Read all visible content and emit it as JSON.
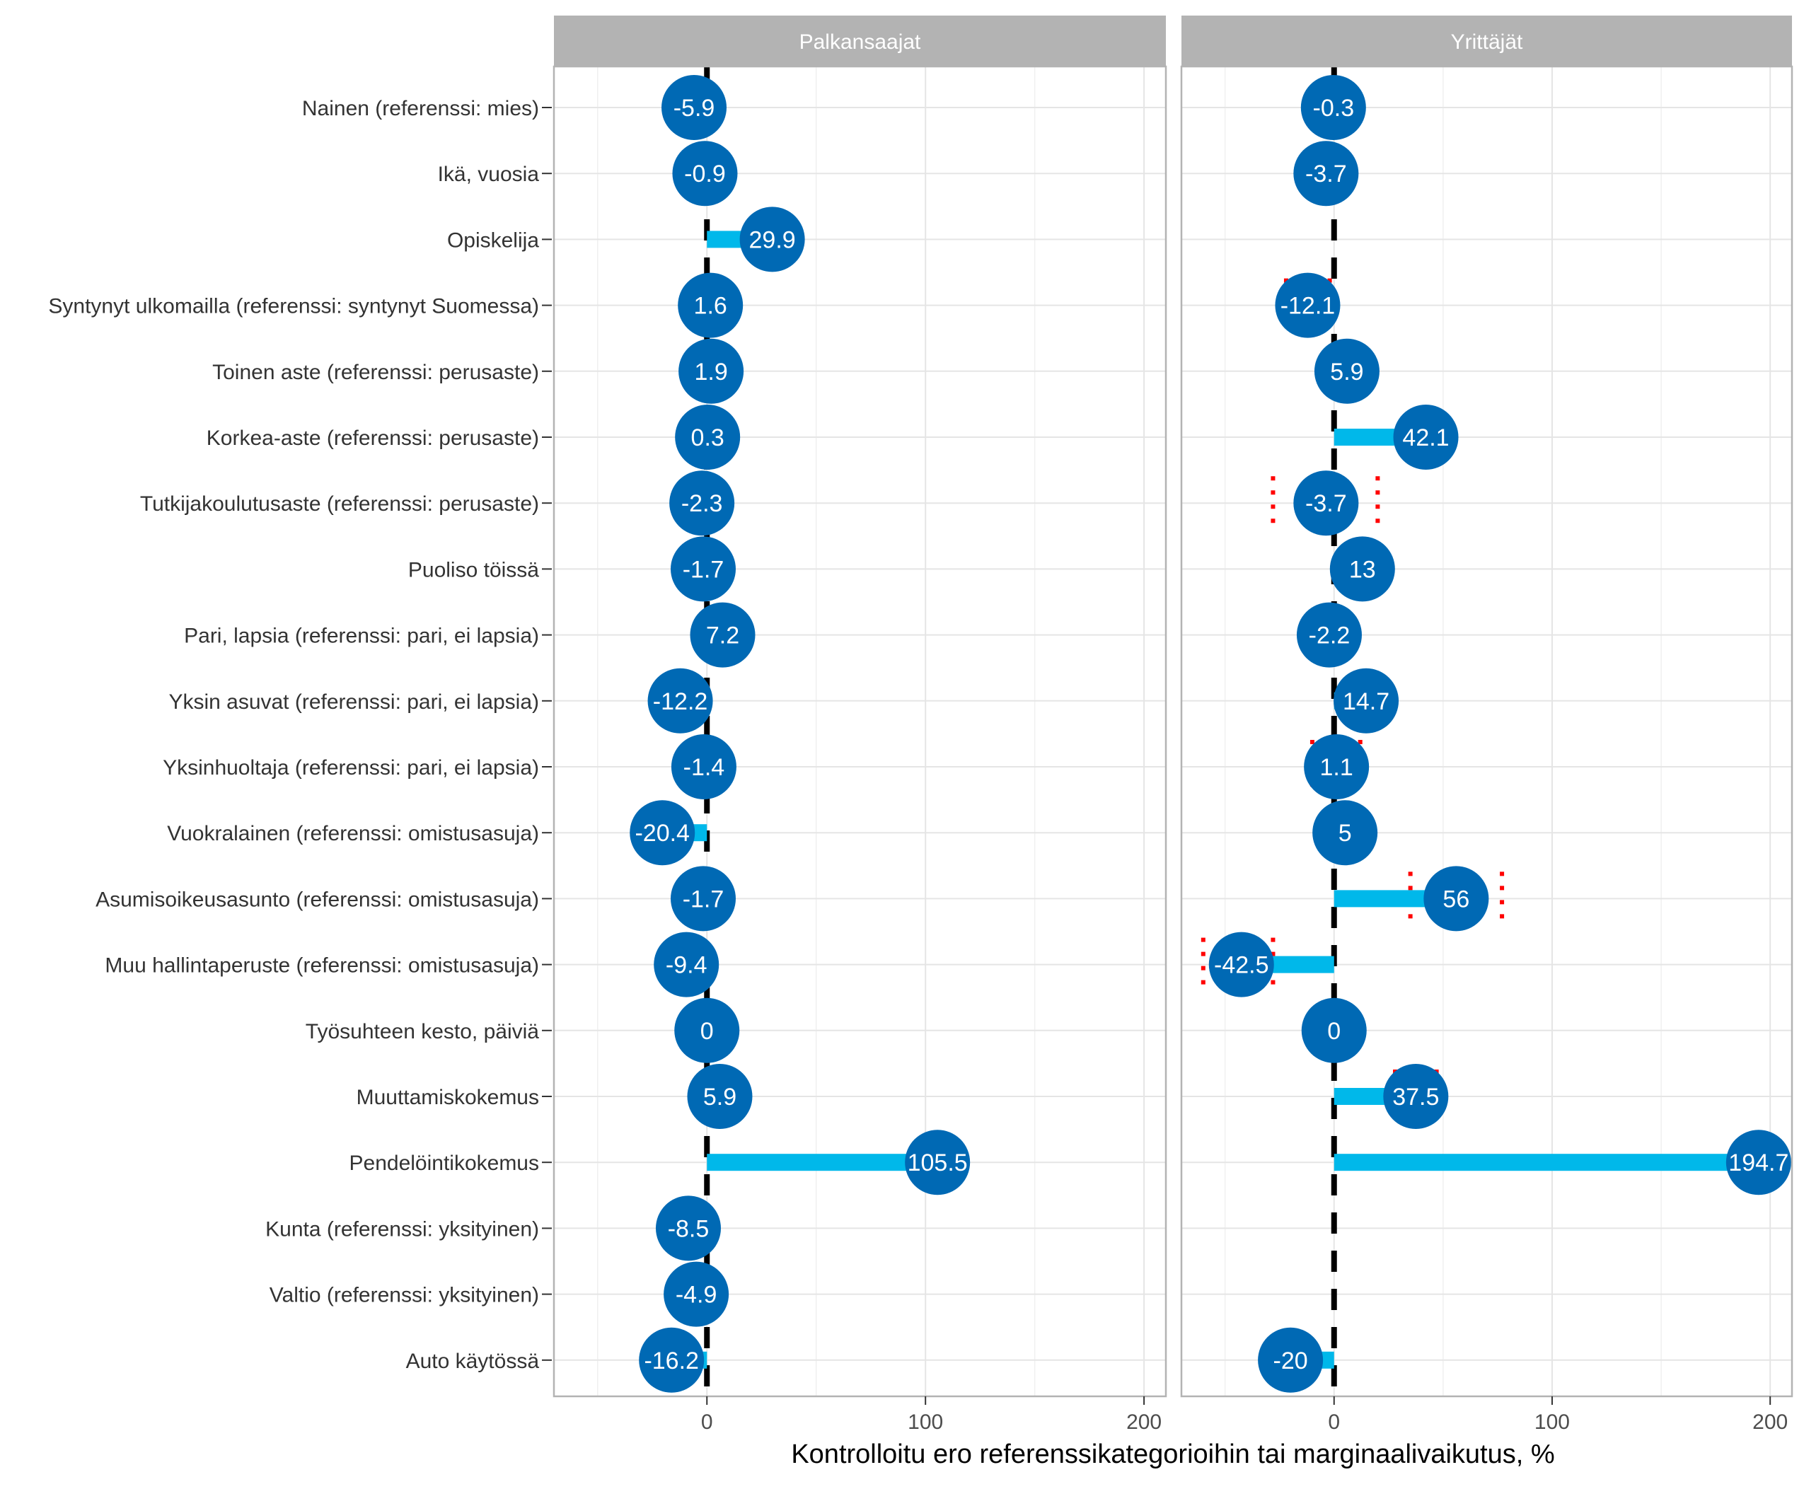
{
  "chart_data": {
    "type": "lollipop",
    "xlabel": "Kontrolloitu ero referenssikategorioihin tai marginaalivaikutus, %",
    "xlim": [
      -70,
      210
    ],
    "xticks": [
      0,
      100,
      200
    ],
    "xtick_labels": [
      "0",
      "100",
      "200"
    ],
    "grid": true,
    "categories": [
      "Nainen (referenssi: mies)",
      "Ikä, vuosia",
      "Opiskelija",
      "Syntynyt ulkomailla (referenssi: syntynyt Suomessa)",
      "Toinen aste (referenssi: perusaste)",
      "Korkea-aste (referenssi: perusaste)",
      "Tutkijakoulutusaste (referenssi: perusaste)",
      "Puoliso töissä",
      "Pari, lapsia (referenssi: pari, ei lapsia)",
      "Yksin asuvat (referenssi: pari, ei lapsia)",
      "Yksinhuoltaja (referenssi: pari, ei lapsia)",
      "Vuokralainen (referenssi: omistusasuja)",
      "Asumisoikeusasunto (referenssi: omistusasuja)",
      "Muu hallintaperuste (referenssi: omistusasuja)",
      "Työsuhteen kesto, päiviä",
      "Muuttamiskokemus",
      "Pendelöintikokemus",
      "Kunta (referenssi: yksityinen)",
      "Valtio (referenssi: yksityinen)",
      "Auto käytössä"
    ],
    "panels": [
      {
        "name": "Palkansaajat",
        "values": [
          -5.9,
          -0.9,
          29.9,
          1.6,
          1.9,
          0.3,
          -2.3,
          -1.7,
          7.2,
          -12.2,
          -1.4,
          -20.4,
          -1.7,
          -9.4,
          0,
          5.9,
          105.5,
          -8.5,
          -4.9,
          -16.2
        ],
        "labels": [
          "-5.9",
          "-0.9",
          "29.9",
          "1.6",
          "1.9",
          "0.3",
          "-2.3",
          "-1.7",
          "7.2",
          "-12.2",
          "-1.4",
          "-20.4",
          "-1.7",
          "-9.4",
          "0",
          "5.9",
          "105.5",
          "-8.5",
          "-4.9",
          "-16.2"
        ],
        "intervals": []
      },
      {
        "name": "Yrittäjät",
        "values": [
          -0.3,
          -3.7,
          null,
          -12.1,
          5.9,
          42.1,
          -3.7,
          13,
          -2.2,
          14.7,
          1.1,
          5,
          56,
          -42.5,
          0,
          37.5,
          194.7,
          null,
          null,
          -20
        ],
        "labels": [
          "-0.3",
          "-3.7",
          "",
          "-12.1",
          "5.9",
          "42.1",
          "-3.7",
          "13",
          "-2.2",
          "14.7",
          "1.1",
          "5",
          "56",
          "-42.5",
          "0",
          "37.5",
          "194.7",
          "",
          "",
          "-20"
        ],
        "intervals": [
          {
            "row": 3,
            "low": -22,
            "high": -2
          },
          {
            "row": 6,
            "low": -28,
            "high": 20
          },
          {
            "row": 9,
            "low": 12,
            "high": 22
          },
          {
            "row": 10,
            "low": -10,
            "high": 12
          },
          {
            "row": 12,
            "low": 35,
            "high": 77
          },
          {
            "row": 13,
            "low": -60,
            "high": -28
          },
          {
            "row": 15,
            "low": 28,
            "high": 47
          }
        ]
      }
    ],
    "colors": {
      "point": "#0069b4",
      "bar": "#00b8ea",
      "reference_line": "#000000",
      "interval": "#ff0000",
      "strip": "#b3b3b3",
      "strip_text": "#ffffff",
      "grid": "#e5e5e5",
      "panel_border": "#b3b3b3",
      "label_text": "#333333"
    }
  }
}
